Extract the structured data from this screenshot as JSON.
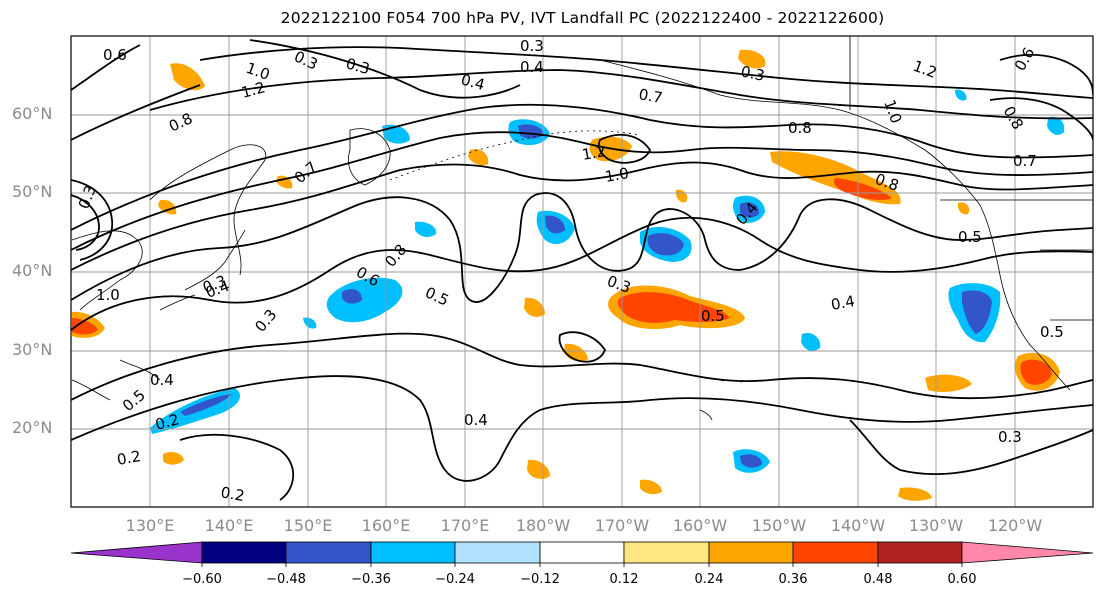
{
  "title": "2022122100 F054 700 hPa PV, IVT Landfall PC (2022122400 - 2022122600)",
  "lat_labels": [
    "60°N",
    "50°N",
    "40°N",
    "30°N",
    "20°N"
  ],
  "lon_labels": [
    "130°E",
    "140°E",
    "150°E",
    "160°E",
    "170°E",
    "180°W",
    "170°W",
    "160°W",
    "150°W",
    "140°W",
    "130°W",
    "120°W"
  ],
  "colorbar": {
    "tick_labels": [
      "−0.60",
      "−0.48",
      "−0.36",
      "−0.24",
      "−0.12",
      "0.12",
      "0.24",
      "0.36",
      "0.48",
      "0.60"
    ],
    "colors": [
      "#9933cc",
      "#000080",
      "#3355cc",
      "#00bfff",
      "#b0e2ff",
      "#ffffff",
      "#ffe680",
      "#ffa500",
      "#ff4500",
      "#b22222",
      "#ff88aa"
    ]
  },
  "contour_labels": [
    "0.6",
    "0.3",
    "0.3",
    "0.3",
    "1.0",
    "1.2",
    "0.8",
    "0.4",
    "0.4",
    "0.7",
    "0.3",
    "1.2",
    "0.8",
    "1.0",
    "0.8",
    "0.5",
    "0.6",
    "0.7",
    "0.7",
    "1.0",
    "1.2",
    "0.8",
    "0.4",
    "0.5",
    "0.3",
    "0.6",
    "0.8",
    "0.5",
    "0.4",
    "1.0",
    "0.3",
    "0.4",
    "0.5",
    "0.4",
    "0.5",
    "0.4",
    "0.3",
    "0.2",
    "0.2",
    "0.3",
    "0.2",
    "0.3"
  ],
  "colors": {
    "contour": "#000000",
    "grid": "#999999",
    "axis_text": "#8c8c8c",
    "coast": "#000000"
  }
}
